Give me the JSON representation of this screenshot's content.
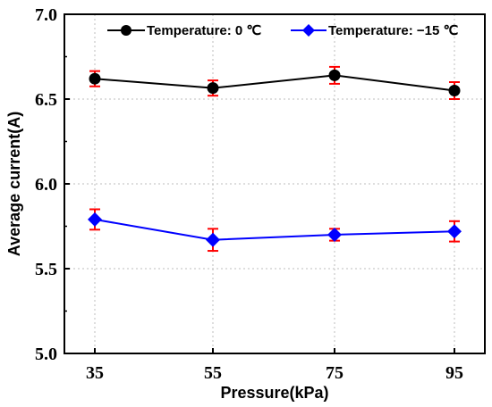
{
  "chart_data": {
    "type": "line",
    "xlabel": "Pressure(kPa)",
    "ylabel": "Average current(A)",
    "categories": [
      "35",
      "55",
      "75",
      "95"
    ],
    "x": [
      35,
      55,
      75,
      95
    ],
    "ylim": [
      5.0,
      7.0
    ],
    "yticks": [
      "5.0",
      "5.5",
      "6.0",
      "6.5",
      "7.0"
    ],
    "grid": true,
    "legend_position": "top",
    "series": [
      {
        "name": "Temperature: 0 ℃",
        "values": [
          6.62,
          6.565,
          6.64,
          6.55
        ],
        "errors": [
          0.045,
          0.045,
          0.05,
          0.05
        ],
        "color": "#000000",
        "marker": "circle"
      },
      {
        "name": "Temperature: −15 ℃",
        "values": [
          5.79,
          5.67,
          5.7,
          5.72
        ],
        "errors": [
          0.06,
          0.065,
          0.035,
          0.06
        ],
        "color": "#0000ff",
        "marker": "diamond"
      }
    ],
    "error_bar_color": "#ff0000"
  }
}
